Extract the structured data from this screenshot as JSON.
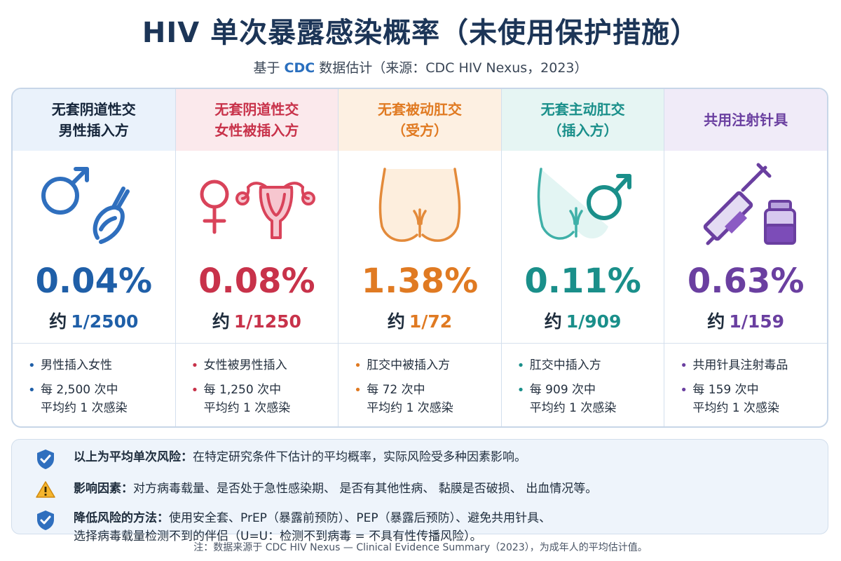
{
  "header": {
    "title": "HIV 单次暴露感染概率（未使用保护措施）",
    "subtitle_prefix": "基于",
    "subtitle_cdc": "CDC",
    "subtitle_suffix": "数据估计（来源：CDC HIV Nexus，2023）"
  },
  "colors": {
    "blue": "#1f5fa8",
    "red": "#c8324a",
    "orange": "#e07a22",
    "teal": "#1a8f8a",
    "purple": "#6a3fa0"
  },
  "cards": [
    {
      "head_line1": "无套阴道性交",
      "head_line2": "男性插入方",
      "percent": "0.04%",
      "ratio_prefix": "约",
      "ratio": "1/2500",
      "bullet1": "男性插入女性",
      "bullet2_line1": "每 2,500 次中",
      "bullet2_line2": "平均约 1 次感染",
      "icon": "male-symbol-icon"
    },
    {
      "head_line1": "无套阴道性交",
      "head_line2": "女性被插入方",
      "percent": "0.08%",
      "ratio_prefix": "约",
      "ratio": "1/1250",
      "bullet1": "女性被男性插入",
      "bullet2_line1": "每 1,250 次中",
      "bullet2_line2": "平均约 1 次感染",
      "icon": "female-uterus-icon"
    },
    {
      "head_line1": "无套被动肛交",
      "head_line2": "（受方）",
      "percent": "1.38%",
      "ratio_prefix": "约",
      "ratio": "1/72",
      "bullet1": "肛交中被插入方",
      "bullet2_line1": "每 72 次中",
      "bullet2_line2": "平均约 1 次感染",
      "icon": "buttocks-icon"
    },
    {
      "head_line1": "无套主动肛交",
      "head_line2": "（插入方）",
      "percent": "0.11%",
      "ratio_prefix": "约",
      "ratio": "1/909",
      "bullet1": "肛交中插入方",
      "bullet2_line1": "每 909 次中",
      "bullet2_line2": "平均约 1 次感染",
      "icon": "body-male-icon"
    },
    {
      "head_line1": "共用注射针具",
      "head_line2": "",
      "percent": "0.63%",
      "ratio_prefix": "约",
      "ratio": "1/159",
      "bullet1": "共用针具注射毒品",
      "bullet2_line1": "每 159 次中",
      "bullet2_line2": "平均约 1 次感染",
      "icon": "syringe-vial-icon"
    }
  ],
  "info": {
    "row1_bold": "以上为平均单次风险：",
    "row1_text": "在特定研究条件下估计的平均概率，实际风险受多种因素影响。",
    "row2_bold": "影响因素：",
    "row2_text": "对方病毒载量、是否处于急性感染期、 是否有其他性病、 黏膜是否破损、 出血情况等。",
    "row3_bold": "降低风险的方法：",
    "row3_text_line1": "使用安全套、PrEP（暴露前预防）、PEP（暴露后预防）、避免共用针具、",
    "row3_text_line2": "选择病毒载量检测不到的伴侣（U=U：检测不到病毒 = 不具有性传播风险）。"
  },
  "footnote": "注：数据来源于 CDC HIV Nexus — Clinical Evidence Summary（2023），为成年人的平均估计值。"
}
